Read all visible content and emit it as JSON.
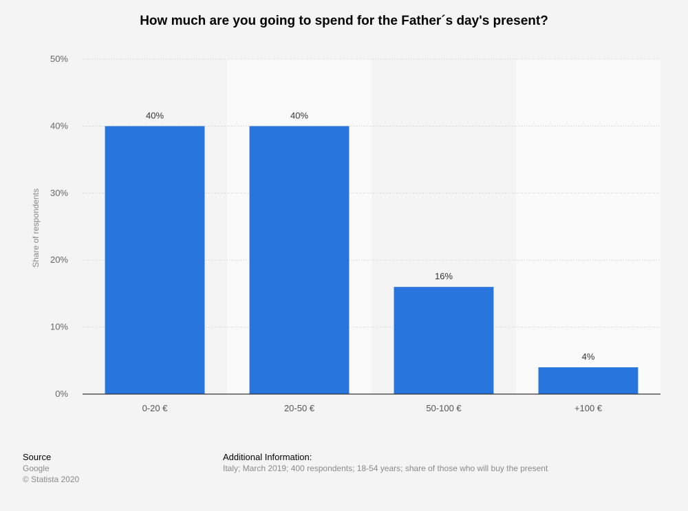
{
  "chart_data": {
    "type": "bar",
    "title": "How much are you going to spend for the Father´s day's present?",
    "categories": [
      "0-20 €",
      "20-50 €",
      "50-100 €",
      "+100 €"
    ],
    "values": [
      40,
      40,
      16,
      4
    ],
    "value_labels": [
      "40%",
      "40%",
      "16%",
      "4%"
    ],
    "xlabel": "",
    "ylabel": "Share of respondents",
    "ylim": [
      0,
      50
    ],
    "yticks": [
      0,
      10,
      20,
      30,
      40,
      50
    ],
    "ytick_labels": [
      "0%",
      "10%",
      "20%",
      "30%",
      "40%",
      "50%"
    ],
    "grid": true,
    "colors": {
      "bar": "#2876dd",
      "band_a": "#f4f4f4",
      "band_b": "#fafafa"
    }
  },
  "footer": {
    "source_heading": "Source",
    "source_lines": [
      "Google",
      "© Statista 2020"
    ],
    "info_heading": "Additional Information:",
    "info_text": "Italy; March 2019; 400 respondents; 18-54 years; share of those who will buy the present"
  }
}
